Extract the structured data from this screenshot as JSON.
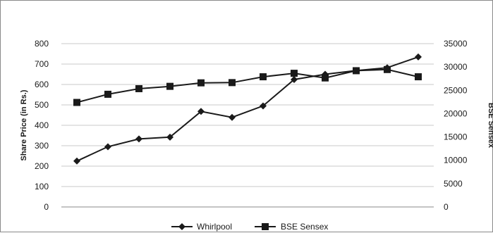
{
  "chart_data": {
    "type": "line",
    "title": "",
    "ylabel": "Share Price (in Rs.)",
    "y2label": "BSE Sensex",
    "ylim": [
      0,
      800
    ],
    "y2lim": [
      0,
      35000
    ],
    "yticks": [
      "0",
      "100",
      "200",
      "300",
      "400",
      "500",
      "600",
      "700",
      "800"
    ],
    "y2ticks": [
      "0",
      "5000",
      "10000",
      "15000",
      "20000",
      "25000",
      "30000",
      "35000"
    ],
    "grid": true,
    "legend": "bottom",
    "x": [
      1,
      2,
      3,
      4,
      5,
      6,
      7,
      8,
      9,
      10,
      11,
      12
    ],
    "series": [
      {
        "name": "Whirlpool",
        "axis": "left",
        "marker": "diamond",
        "values": [
          225,
          295,
          333,
          342,
          468,
          439,
          495,
          624,
          650,
          668,
          682,
          735
        ]
      },
      {
        "name": "BSE Sensex",
        "axis": "right",
        "marker": "square",
        "values": [
          22400,
          24150,
          25350,
          25850,
          26600,
          26650,
          27900,
          28650,
          27650,
          29200,
          29450,
          27900
        ]
      }
    ],
    "colors": {
      "line": "#1a1a1a",
      "grid": "#c8c8c8"
    }
  }
}
